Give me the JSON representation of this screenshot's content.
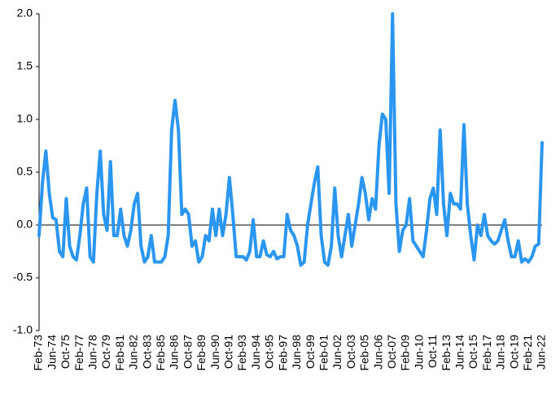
{
  "chart_data": {
    "type": "line",
    "color": "#2a96f0",
    "categories": [
      "Feb-73",
      null,
      null,
      null,
      "Jun-74",
      null,
      null,
      null,
      "Oct-75",
      null,
      null,
      null,
      "Feb-77",
      null,
      null,
      null,
      "Jun-78",
      null,
      null,
      null,
      "Oct-79",
      null,
      null,
      null,
      "Feb-81",
      null,
      null,
      null,
      "Jun-82",
      null,
      null,
      null,
      "Oct-83",
      null,
      null,
      null,
      "Feb-85",
      null,
      null,
      null,
      "Jun-86",
      null,
      null,
      null,
      "Oct-87",
      null,
      null,
      null,
      "Feb-89",
      null,
      null,
      null,
      "Jun-90",
      null,
      null,
      null,
      "Oct-91",
      null,
      null,
      null,
      "Feb-93",
      null,
      null,
      null,
      "Jun-94",
      null,
      null,
      null,
      "Oct-95",
      null,
      null,
      null,
      "Feb-97",
      null,
      null,
      null,
      "Jun-98",
      null,
      null,
      null,
      "Oct-99",
      null,
      null,
      null,
      "Feb-01",
      null,
      null,
      null,
      "Jun-02",
      null,
      null,
      null,
      "Oct-03",
      null,
      null,
      null,
      "Feb-05",
      null,
      null,
      null,
      "Jun-06",
      null,
      null,
      null,
      "Oct-07",
      null,
      null,
      null,
      "Feb-09",
      null,
      null,
      null,
      "Jun-10",
      null,
      null,
      null,
      "Oct-11",
      null,
      null,
      null,
      "Feb-13",
      null,
      null,
      null,
      "Jun-14",
      null,
      null,
      null,
      "Oct-15",
      null,
      null,
      null,
      "Feb-17",
      null,
      null,
      null,
      "Jun-18",
      null,
      null,
      null,
      "Oct-19",
      null,
      null,
      null,
      "Feb-21",
      null,
      null,
      null,
      "Jun-22"
    ],
    "values": [
      -0.1,
      0.4,
      0.7,
      0.3,
      0.07,
      0.05,
      -0.25,
      -0.3,
      0.25,
      -0.2,
      -0.3,
      -0.33,
      -0.1,
      0.2,
      0.35,
      -0.3,
      -0.35,
      0.3,
      0.7,
      0.1,
      -0.05,
      0.6,
      -0.1,
      -0.1,
      0.15,
      -0.1,
      -0.2,
      -0.05,
      0.2,
      0.3,
      -0.2,
      -0.35,
      -0.3,
      -0.1,
      -0.35,
      -0.35,
      -0.35,
      -0.3,
      -0.1,
      0.9,
      1.18,
      0.9,
      0.1,
      0.15,
      0.1,
      -0.2,
      -0.15,
      -0.35,
      -0.3,
      -0.1,
      -0.15,
      0.15,
      -0.1,
      0.15,
      -0.1,
      0.1,
      0.45,
      0.1,
      -0.3,
      -0.3,
      -0.3,
      -0.33,
      -0.25,
      0.05,
      -0.3,
      -0.3,
      -0.15,
      -0.28,
      -0.3,
      -0.25,
      -0.32,
      -0.3,
      -0.3,
      0.1,
      -0.05,
      -0.1,
      -0.2,
      -0.38,
      -0.35,
      0.0,
      0.2,
      0.4,
      0.55,
      -0.1,
      -0.35,
      -0.38,
      -0.2,
      0.35,
      -0.1,
      -0.3,
      -0.1,
      0.1,
      -0.2,
      0.0,
      0.2,
      0.45,
      0.3,
      0.05,
      0.25,
      0.15,
      0.75,
      1.05,
      1.0,
      0.3,
      2.0,
      0.2,
      -0.25,
      -0.05,
      0.0,
      0.25,
      -0.15,
      -0.2,
      -0.25,
      -0.3,
      -0.05,
      0.25,
      0.35,
      0.1,
      0.9,
      0.2,
      -0.1,
      0.3,
      0.2,
      0.2,
      0.15,
      0.95,
      0.2,
      -0.1,
      -0.33,
      0.0,
      -0.1,
      0.1,
      -0.1,
      -0.15,
      -0.18,
      -0.15,
      -0.05,
      0.05,
      -0.15,
      -0.3,
      -0.3,
      -0.15,
      -0.35,
      -0.32,
      -0.35,
      -0.3,
      -0.2,
      -0.18,
      0.78
    ],
    "ylim": [
      -1,
      2
    ],
    "yticks": [
      {
        "value": -1,
        "label": "-1.0"
      },
      -0.5,
      {
        "value": 0,
        "label": "0.0"
      },
      0.5,
      {
        "value": 1,
        "label": "1.0"
      },
      1.5,
      {
        "value": 2,
        "label": "2.0"
      }
    ]
  }
}
